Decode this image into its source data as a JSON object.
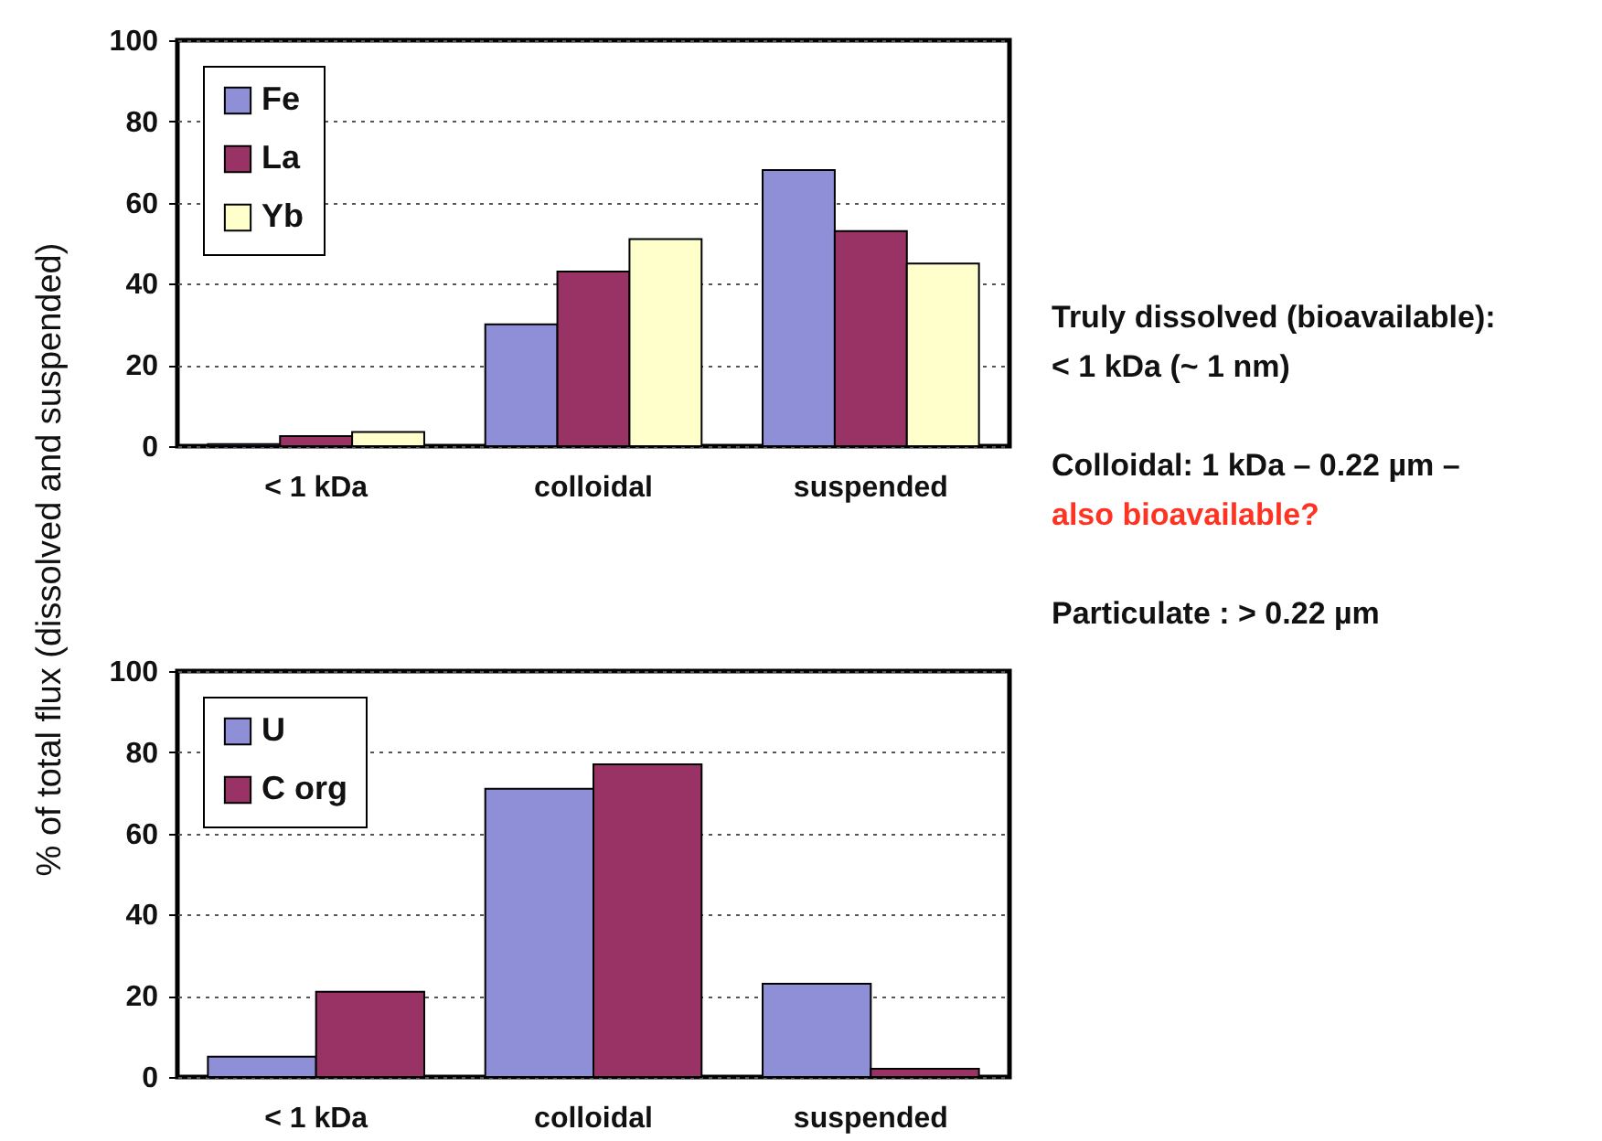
{
  "chart_data": [
    {
      "type": "bar",
      "ylabel": "% of total flux (dissolved and suspended)",
      "categories": [
        "< 1 kDa",
        "colloidal",
        "suspended"
      ],
      "series": [
        {
          "name": "Fe",
          "color": "#8e8fd6",
          "values": [
            0.5,
            30,
            68
          ]
        },
        {
          "name": "La",
          "color": "#993366",
          "values": [
            2.5,
            43,
            53
          ]
        },
        {
          "name": "Yb",
          "color": "#ffffcc",
          "values": [
            3.5,
            51,
            45
          ]
        }
      ],
      "ylim": [
        0,
        100
      ],
      "yticks": [
        0,
        20,
        40,
        60,
        80,
        100
      ],
      "grid": "y",
      "legend": "top left",
      "annotations": [
        "Truly dissolved (bioavailable):",
        "< 1 kDa (~ 1 nm)",
        "Colloidal: 1 kDa – 0.22 µm –",
        "also bioavailable?",
        "Particulate : > 0.22 µm"
      ]
    },
    {
      "type": "bar",
      "categories": [
        "< 1 kDa",
        "colloidal",
        "suspended"
      ],
      "series": [
        {
          "name": "U",
          "color": "#8e8fd6",
          "values": [
            5,
            71,
            23
          ]
        },
        {
          "name": "C org",
          "color": "#993366",
          "values": [
            21,
            77,
            2
          ]
        }
      ],
      "ylim": [
        0,
        100
      ],
      "yticks": [
        0,
        20,
        40,
        60,
        80,
        100
      ],
      "grid": "y",
      "legend": "top left"
    }
  ]
}
